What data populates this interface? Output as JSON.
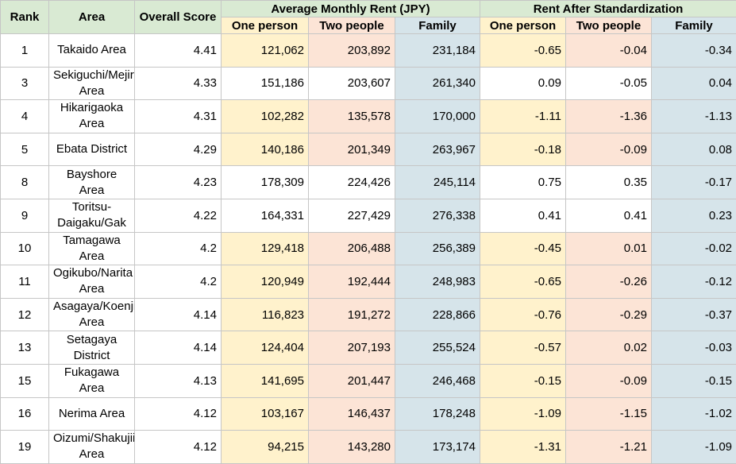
{
  "chart_data": {
    "type": "table",
    "headers": {
      "rank": "Rank",
      "area": "Area",
      "overall": "Overall Score",
      "avg_group": "Average Monthly Rent (JPY)",
      "std_group": "Rent After Standardization",
      "sub": [
        "One person",
        "Two people",
        "Family",
        "One person",
        "Two people",
        "Family"
      ]
    },
    "rows": [
      {
        "rank": "1",
        "area": "Takaido Area",
        "score": "4.41",
        "one": "121,062",
        "two": "203,892",
        "family": "231,184",
        "s_one": "-0.65",
        "s_two": "-0.04",
        "s_family": "-0.34"
      },
      {
        "rank": "3",
        "area": "Sekiguchi/Mejirodai Area",
        "score": "4.33",
        "one": "151,186",
        "two": "203,607",
        "family": "261,340",
        "s_one": "0.09",
        "s_two": "-0.05",
        "s_family": "0.04"
      },
      {
        "rank": "4",
        "area": "Hikarigaoka Area",
        "score": "4.31",
        "one": "102,282",
        "two": "135,578",
        "family": "170,000",
        "s_one": "-1.11",
        "s_two": "-1.36",
        "s_family": "-1.13"
      },
      {
        "rank": "5",
        "area": "Ebata District",
        "score": "4.29",
        "one": "140,186",
        "two": "201,349",
        "family": "263,967",
        "s_one": "-0.18",
        "s_two": "-0.09",
        "s_family": "0.08"
      },
      {
        "rank": "8",
        "area": "Bayshore Area",
        "score": "4.23",
        "one": "178,309",
        "two": "224,426",
        "family": "245,114",
        "s_one": "0.75",
        "s_two": "0.35",
        "s_family": "-0.17"
      },
      {
        "rank": "9",
        "area": "Toritsu-Daigaku/Gak",
        "score": "4.22",
        "one": "164,331",
        "two": "227,429",
        "family": "276,338",
        "s_one": "0.41",
        "s_two": "0.41",
        "s_family": "0.23"
      },
      {
        "rank": "10",
        "area": "Tamagawa Area",
        "score": "4.2",
        "one": "129,418",
        "two": "206,488",
        "family": "256,389",
        "s_one": "-0.45",
        "s_two": "0.01",
        "s_family": "-0.02"
      },
      {
        "rank": "11",
        "area": "Ogikubo/Narita Area",
        "score": "4.2",
        "one": "120,949",
        "two": "192,444",
        "family": "248,983",
        "s_one": "-0.65",
        "s_two": "-0.26",
        "s_family": "-0.12"
      },
      {
        "rank": "12",
        "area": "Asagaya/Koenji Area",
        "score": "4.14",
        "one": "116,823",
        "two": "191,272",
        "family": "228,866",
        "s_one": "-0.76",
        "s_two": "-0.29",
        "s_family": "-0.37"
      },
      {
        "rank": "13",
        "area": "Setagaya District",
        "score": "4.14",
        "one": "124,404",
        "two": "207,193",
        "family": "255,524",
        "s_one": "-0.57",
        "s_two": "0.02",
        "s_family": "-0.03"
      },
      {
        "rank": "15",
        "area": "Fukagawa Area",
        "score": "4.13",
        "one": "141,695",
        "two": "201,447",
        "family": "246,468",
        "s_one": "-0.15",
        "s_two": "-0.09",
        "s_family": "-0.15"
      },
      {
        "rank": "16",
        "area": "Nerima Area",
        "score": "4.12",
        "one": "103,167",
        "two": "146,437",
        "family": "178,248",
        "s_one": "-1.09",
        "s_two": "-1.15",
        "s_family": "-1.02"
      },
      {
        "rank": "19",
        "area": "Oizumi/Shakujii Area",
        "score": "4.12",
        "one": "94,215",
        "two": "143,280",
        "family": "173,174",
        "s_one": "-1.31",
        "s_two": "-1.21",
        "s_family": "-1.09"
      }
    ],
    "row_colors": [
      "y",
      "w",
      "y",
      "y",
      "w",
      "w",
      "y",
      "y",
      "y",
      "y",
      "y",
      "y",
      "y"
    ],
    "colors": {
      "header_bg": "#d9ead3",
      "one_person_bg": "#fff2cc",
      "two_people_bg": "#fce4d6",
      "family_bg": "#d6e4ea",
      "grid": "#c6c6c6"
    }
  }
}
